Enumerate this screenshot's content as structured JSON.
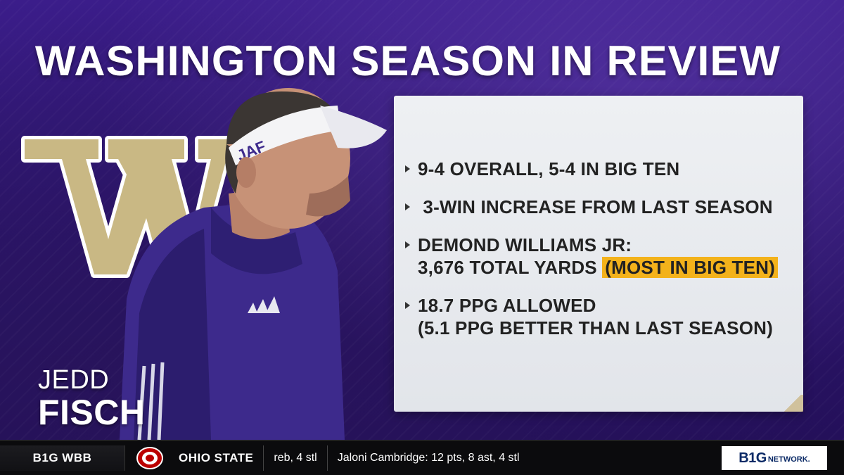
{
  "graphic": {
    "title": "WASHINGTON SEASON IN REVIEW",
    "coach": {
      "first_name": "JEDD",
      "last_name": "FISCH",
      "visor_text": "JAF"
    },
    "stats": [
      {
        "line1": "9-4 OVERALL, 5-4 IN BIG TEN"
      },
      {
        "line1": " 3-WIN INCREASE FROM LAST SEASON"
      },
      {
        "line1": "DEMOND WILLIAMS JR:",
        "line2": "3,676 TOTAL YARDS",
        "highlight": "(MOST IN BIG TEN)"
      },
      {
        "line1": "18.7 PPG ALLOWED",
        "line2": "(5.1 PPG BETTER THAN LAST SEASON)"
      }
    ],
    "colors": {
      "purple": "#3b1d8a",
      "gold": "#c9b884",
      "highlight": "#f3b21b",
      "panel": "#e8eaee"
    }
  },
  "ticker": {
    "league": "B1G WBB",
    "team": "OHIO STATE",
    "text_fragment": "reb, 4 stl",
    "text_main": "Jaloni Cambridge: 12 pts, 8 ast, 4 stl",
    "network_big": "B1G",
    "network_small": "NETWORK."
  }
}
